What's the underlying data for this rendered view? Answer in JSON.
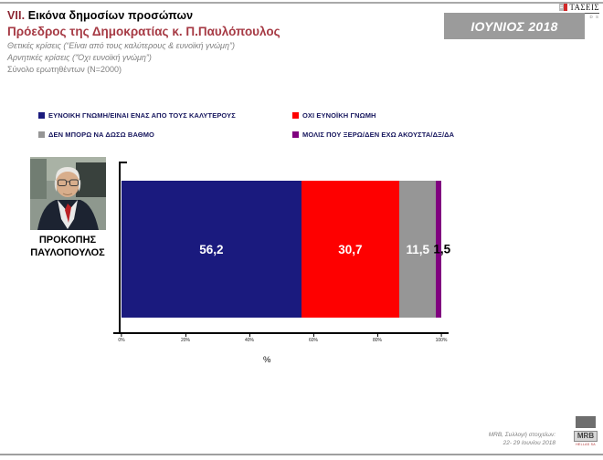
{
  "page": {
    "brand": {
      "logo_text": "ΤΑΣΕΙΣ",
      "logo_sub": "D S"
    },
    "month_badge": "ΙΟΥΝΙΟΣ 2018"
  },
  "header": {
    "section_number": "VII.",
    "section_title": "Εικόνα δημοσίων προσώπων",
    "subtitle": "Πρόεδρος της Δημοκρατίας κ. Π.Παυλόπουλος",
    "note_positive": "Θετικές κρίσεις (“Είναι από τους καλύτερους & ευνοϊκή γνώμη”)",
    "note_negative": "Αρνητικές κρίσεις (“Όχι ευνοϊκή γνώμη”)",
    "note_sample": "Σύνολο ερωτηθέντων (N=2000)"
  },
  "person": {
    "name_line1": "ΠΡΟΚΟΠΗΣ",
    "name_line2": "ΠΑΥΛΟΠΟΥΛΟΣ"
  },
  "chart_data": {
    "type": "bar",
    "orientation": "horizontal",
    "stacked": true,
    "categories": [
      "ΠΡΟΚΟΠΗΣ ΠΑΥΛΟΠΟΥΛΟΣ"
    ],
    "series": [
      {
        "name": "ΕΥΝΟΙΚΗ ΓΝΩΜΗ/ΕΙΝΑΙ ΕΝΑΣ ΑΠΟ ΤΟΥΣ ΚΑΛΥΤΕΡΟΥΣ",
        "values": [
          56.2
        ],
        "label": "56,2",
        "color": "#1a1a7e"
      },
      {
        "name": "ΟΧΙ ΕΥΝΟΪΚΗ ΓΝΩΜΗ",
        "values": [
          30.7
        ],
        "label": "30,7",
        "color": "#fe0000"
      },
      {
        "name": "ΔΕΝ ΜΠΟΡΩ ΝΑ ΔΩΣΩ ΒΑΘΜΟ",
        "values": [
          11.5
        ],
        "label": "11,5",
        "color": "#969696"
      },
      {
        "name": "ΜΟΛΙΣ ΠΟΥ ΞΕΡΩ/ΔΕΝ ΕΧΩ ΑΚΟΥΣΤΑ/ΔΞ/ΔΑ",
        "values": [
          1.5
        ],
        "label": "1,5",
        "color": "#80007f"
      }
    ],
    "xlabel": "%",
    "xlim": [
      0,
      100
    ],
    "x_tick_labels": [
      "0%",
      "20%",
      "40%",
      "60%",
      "80%",
      "100%"
    ],
    "grid": false,
    "legend_position": "top"
  },
  "footer": {
    "source_line1": "MRB, Συλλογή στοιχείων:",
    "source_line2": "22- 29 Ιουνίου 2018",
    "logo_text": "MRB",
    "logo_sub": "HELLAS SA"
  }
}
